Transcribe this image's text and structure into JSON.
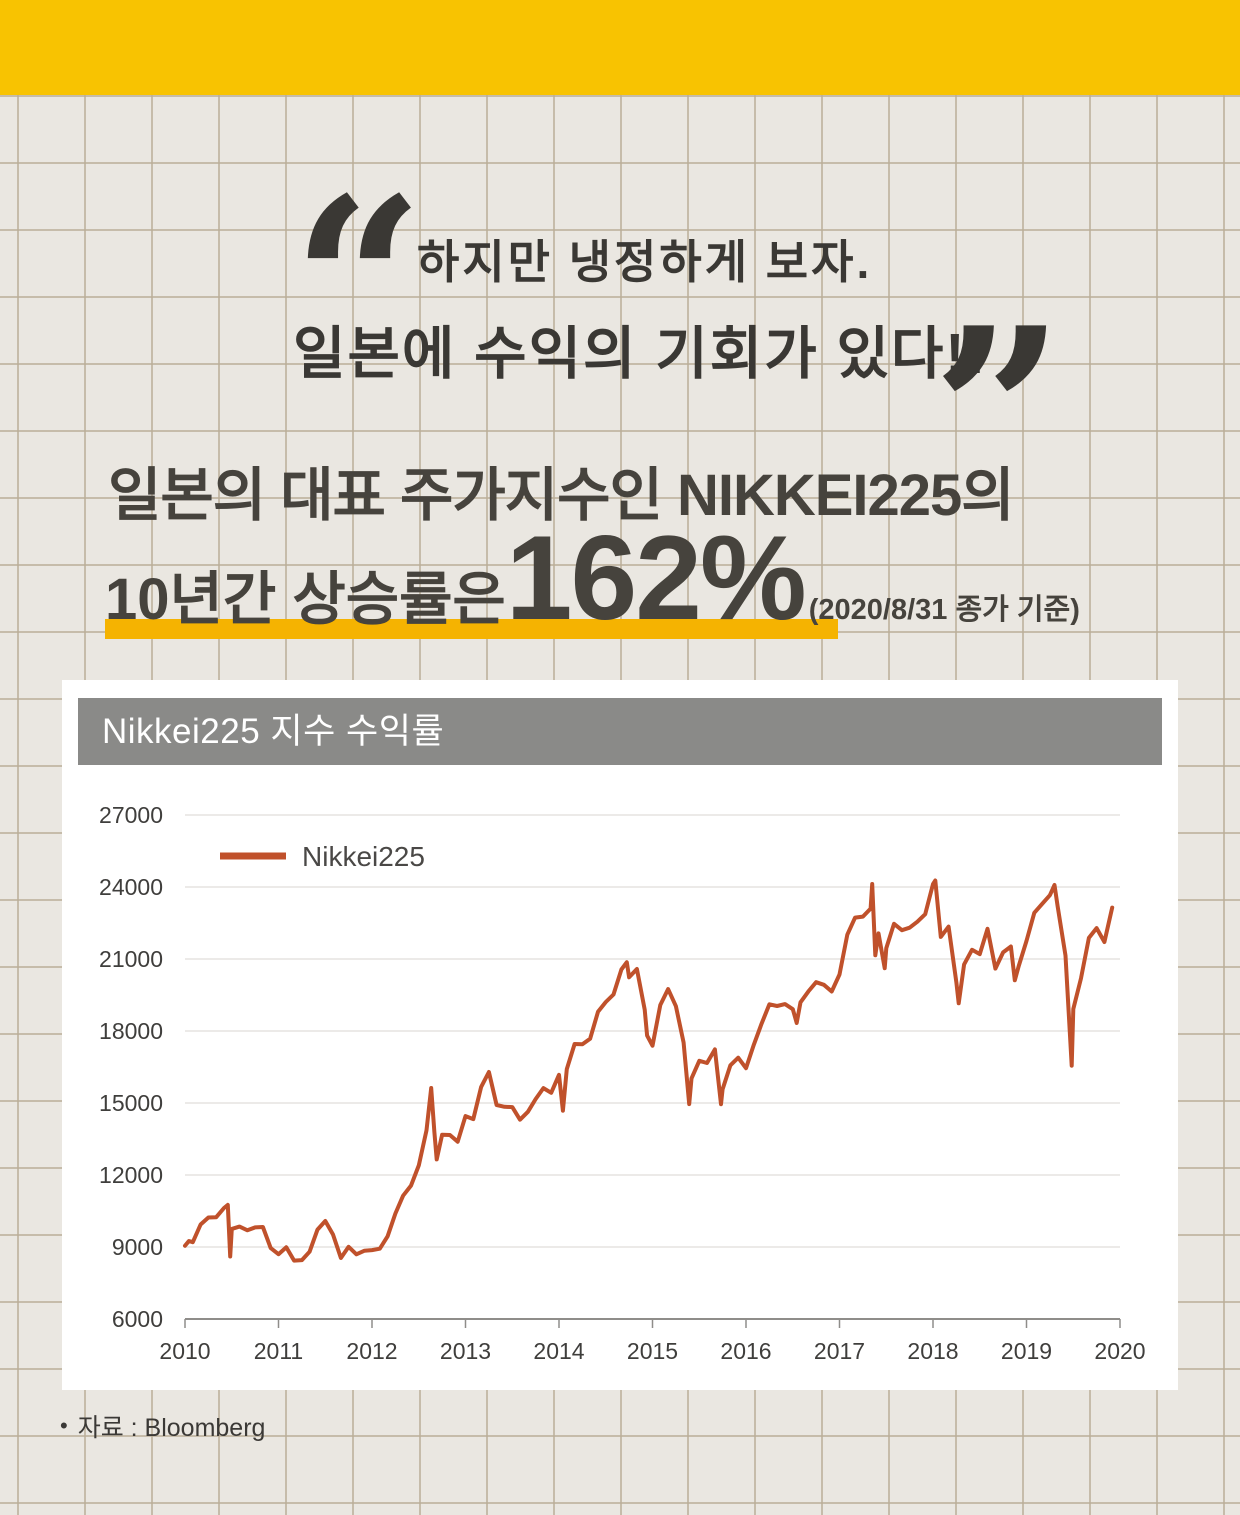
{
  "banner": {
    "color": "#f8c301"
  },
  "quote": {
    "open_mark": "“",
    "close_mark": "”",
    "line1": "하지만 냉정하게 보자.",
    "line2": "일본에 수익의 기회가 있다!!"
  },
  "headline": {
    "line1": "일본의 대표 주가지수인 NIKKEI225의",
    "line2_prefix": "10년간 상승률은 ",
    "big_number": "162%",
    "note": "(2020/8/31 종가 기준)",
    "underline_color": "#f5b301"
  },
  "chart_card": {
    "header": "Nikkei225 지수 수익률",
    "header_bg": "#8a8a88"
  },
  "source": {
    "bullet": "•",
    "text": "자료 : Bloomberg"
  },
  "chart_data": {
    "type": "line",
    "title": "Nikkei225 지수 수익률",
    "xlabel": "",
    "ylabel": "",
    "xlim": [
      2010,
      2020
    ],
    "ylim": [
      6000,
      27000
    ],
    "x_ticks": [
      2010,
      2011,
      2012,
      2013,
      2014,
      2015,
      2016,
      2017,
      2018,
      2019,
      2020
    ],
    "y_ticks": [
      27000,
      24000,
      21000,
      18000,
      15000,
      12000,
      9000,
      6000
    ],
    "grid": "horizontal",
    "legend_position": "top-left-inside",
    "legend": [
      {
        "name": "Nikkei225",
        "color": "#c0512b"
      }
    ],
    "series": [
      {
        "name": "Nikkei225",
        "color": "#c0512b",
        "points": [
          [
            2010.0,
            9050
          ],
          [
            2010.042,
            9250
          ],
          [
            2010.083,
            9202
          ],
          [
            2010.167,
            9937
          ],
          [
            2010.25,
            10229
          ],
          [
            2010.333,
            10237
          ],
          [
            2010.417,
            10624
          ],
          [
            2010.458,
            10754
          ],
          [
            2010.483,
            8605
          ],
          [
            2010.5,
            9755
          ],
          [
            2010.583,
            9850
          ],
          [
            2010.667,
            9694
          ],
          [
            2010.75,
            9816
          ],
          [
            2010.833,
            9833
          ],
          [
            2010.917,
            8955
          ],
          [
            2011.0,
            8700
          ],
          [
            2011.083,
            8988
          ],
          [
            2011.167,
            8435
          ],
          [
            2011.25,
            8455
          ],
          [
            2011.333,
            8803
          ],
          [
            2011.417,
            9723
          ],
          [
            2011.5,
            10084
          ],
          [
            2011.583,
            9521
          ],
          [
            2011.667,
            8543
          ],
          [
            2011.75,
            9007
          ],
          [
            2011.833,
            8695
          ],
          [
            2011.917,
            8840
          ],
          [
            2012.0,
            8870
          ],
          [
            2012.083,
            8928
          ],
          [
            2012.167,
            9446
          ],
          [
            2012.25,
            10395
          ],
          [
            2012.333,
            11139
          ],
          [
            2012.417,
            11559
          ],
          [
            2012.5,
            12398
          ],
          [
            2012.583,
            13861
          ],
          [
            2012.633,
            15627
          ],
          [
            2012.667,
            13775
          ],
          [
            2012.692,
            12650
          ],
          [
            2012.75,
            13677
          ],
          [
            2012.833,
            13668
          ],
          [
            2012.917,
            13389
          ],
          [
            2013.0,
            14456
          ],
          [
            2013.083,
            14328
          ],
          [
            2013.167,
            15662
          ],
          [
            2013.25,
            16291
          ],
          [
            2013.333,
            14915
          ],
          [
            2013.417,
            14841
          ],
          [
            2013.5,
            14828
          ],
          [
            2013.583,
            14304
          ],
          [
            2013.667,
            14632
          ],
          [
            2013.75,
            15162
          ],
          [
            2013.833,
            15621
          ],
          [
            2013.917,
            15425
          ],
          [
            2014.0,
            16174
          ],
          [
            2014.042,
            14680
          ],
          [
            2014.083,
            16414
          ],
          [
            2014.167,
            17460
          ],
          [
            2014.25,
            17451
          ],
          [
            2014.333,
            17674
          ],
          [
            2014.417,
            18798
          ],
          [
            2014.5,
            19207
          ],
          [
            2014.583,
            19520
          ],
          [
            2014.667,
            20563
          ],
          [
            2014.725,
            20868
          ],
          [
            2014.75,
            20236
          ],
          [
            2014.833,
            20585
          ],
          [
            2014.917,
            18890
          ],
          [
            2014.942,
            17807
          ],
          [
            2015.0,
            17388
          ],
          [
            2015.083,
            19083
          ],
          [
            2015.167,
            19747
          ],
          [
            2015.25,
            19034
          ],
          [
            2015.333,
            17518
          ],
          [
            2015.392,
            14953
          ],
          [
            2015.417,
            16027
          ],
          [
            2015.5,
            16759
          ],
          [
            2015.583,
            16666
          ],
          [
            2015.667,
            17235
          ],
          [
            2015.733,
            14952
          ],
          [
            2015.75,
            15576
          ],
          [
            2015.833,
            16569
          ],
          [
            2015.917,
            16887
          ],
          [
            2016.0,
            16450
          ],
          [
            2016.083,
            17425
          ],
          [
            2016.167,
            18308
          ],
          [
            2016.25,
            19114
          ],
          [
            2016.333,
            19041
          ],
          [
            2016.417,
            19119
          ],
          [
            2016.5,
            18909
          ],
          [
            2016.542,
            18336
          ],
          [
            2016.583,
            19197
          ],
          [
            2016.667,
            19651
          ],
          [
            2016.75,
            20033
          ],
          [
            2016.833,
            19925
          ],
          [
            2016.917,
            19646
          ],
          [
            2017.0,
            20356
          ],
          [
            2017.083,
            22012
          ],
          [
            2017.167,
            22725
          ],
          [
            2017.25,
            22765
          ],
          [
            2017.333,
            23098
          ],
          [
            2017.35,
            24124
          ],
          [
            2017.383,
            21154
          ],
          [
            2017.417,
            22068
          ],
          [
            2017.483,
            20617
          ],
          [
            2017.5,
            21454
          ],
          [
            2017.583,
            22468
          ],
          [
            2017.667,
            22202
          ],
          [
            2017.75,
            22305
          ],
          [
            2017.833,
            22554
          ],
          [
            2017.917,
            22865
          ],
          [
            2018.0,
            24120
          ],
          [
            2018.025,
            24270
          ],
          [
            2018.083,
            21920
          ],
          [
            2018.167,
            22351
          ],
          [
            2018.25,
            20015
          ],
          [
            2018.275,
            19156
          ],
          [
            2018.333,
            20773
          ],
          [
            2018.417,
            21385
          ],
          [
            2018.5,
            21206
          ],
          [
            2018.583,
            22259
          ],
          [
            2018.667,
            20601
          ],
          [
            2018.75,
            21276
          ],
          [
            2018.833,
            21522
          ],
          [
            2018.875,
            20111
          ],
          [
            2018.917,
            20704
          ],
          [
            2019.0,
            21756
          ],
          [
            2019.083,
            22927
          ],
          [
            2019.167,
            23294
          ],
          [
            2019.25,
            23657
          ],
          [
            2019.3,
            24083
          ],
          [
            2019.333,
            23205
          ],
          [
            2019.417,
            21143
          ],
          [
            2019.483,
            16553
          ],
          [
            2019.5,
            18917
          ],
          [
            2019.583,
            20194
          ],
          [
            2019.667,
            21878
          ],
          [
            2019.75,
            22288
          ],
          [
            2019.833,
            21710
          ],
          [
            2019.917,
            23140
          ]
        ]
      }
    ]
  }
}
